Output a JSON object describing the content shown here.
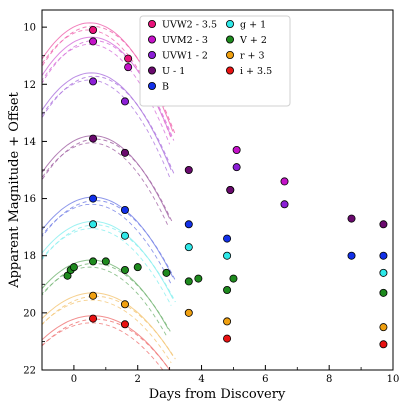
{
  "chart_data": {
    "type": "scatter",
    "title": "",
    "xlabel": "Days from Discovery",
    "ylabel": "Apparent Magnitude + Offset",
    "xlim": [
      -1,
      10
    ],
    "ylim": [
      22,
      9.4
    ],
    "y_inverted": true,
    "grid": false,
    "legend_position": "top-center",
    "xticks": [
      0,
      2,
      4,
      6,
      8,
      10
    ],
    "yticks": [
      10,
      12,
      14,
      16,
      18,
      20,
      22
    ],
    "series": [
      {
        "name": "UVW2 - 3.5",
        "color": "#e8127a",
        "curve_color": "#f06ab0",
        "points": [
          [
            0.6,
            10.1
          ],
          [
            1.7,
            11.1
          ]
        ],
        "curve": {
          "peak_x": 0.5,
          "peak_y": 9.85,
          "half_width": 2.6,
          "depth": 3.8
        }
      },
      {
        "name": "UVM2 - 3",
        "color": "#c412c8",
        "curve_color": "#d875dc",
        "points": [
          [
            0.6,
            10.5
          ],
          [
            1.7,
            11.4
          ],
          [
            5.1,
            14.3
          ],
          [
            6.6,
            15.4
          ]
        ],
        "curve": {
          "peak_x": 0.55,
          "peak_y": 10.35,
          "half_width": 2.5,
          "depth": 3.5
        }
      },
      {
        "name": "UVW1 - 2",
        "color": "#8c1fd6",
        "curve_color": "#b07ae0",
        "points": [
          [
            0.6,
            11.9
          ],
          [
            1.6,
            12.6
          ],
          [
            4.9,
            15.7
          ],
          [
            5.1,
            14.9
          ],
          [
            6.6,
            16.2
          ]
        ],
        "curve": {
          "peak_x": 0.55,
          "peak_y": 11.6,
          "half_width": 2.5,
          "depth": 3.4
        }
      },
      {
        "name": "U - 1",
        "color": "#6a0a6e",
        "curve_color": "#a66aa8",
        "points": [
          [
            0.6,
            13.9
          ],
          [
            1.6,
            14.4
          ],
          [
            3.6,
            15.0
          ],
          [
            4.9,
            15.7
          ],
          [
            8.7,
            16.7
          ],
          [
            9.7,
            16.9
          ]
        ],
        "curve": {
          "peak_x": 0.6,
          "peak_y": 13.8,
          "half_width": 2.4,
          "depth": 2.9
        }
      },
      {
        "name": "B",
        "color": "#1230e8",
        "curve_color": "#7a86e8",
        "points": [
          [
            0.6,
            16.0
          ],
          [
            1.6,
            16.4
          ],
          [
            3.6,
            16.9
          ],
          [
            4.8,
            17.4
          ],
          [
            8.7,
            18.0
          ],
          [
            9.7,
            18.0
          ]
        ],
        "curve": {
          "peak_x": 0.6,
          "peak_y": 15.95,
          "half_width": 2.5,
          "depth": 2.8
        }
      },
      {
        "name": "g + 1",
        "color": "#2ee8e8",
        "curve_color": "#8cf0f0",
        "points": [
          [
            0.6,
            16.9
          ],
          [
            1.6,
            17.3
          ],
          [
            3.6,
            17.7
          ],
          [
            4.8,
            18.0
          ],
          [
            9.7,
            18.6
          ]
        ],
        "curve": {
          "peak_x": 0.6,
          "peak_y": 16.8,
          "half_width": 2.5,
          "depth": 2.7
        }
      },
      {
        "name": "V + 2",
        "color": "#1e8a1e",
        "curve_color": "#7ab87a",
        "points": [
          [
            -0.2,
            18.7
          ],
          [
            -0.1,
            18.5
          ],
          [
            0.0,
            18.4
          ],
          [
            0.6,
            18.2
          ],
          [
            1.0,
            18.2
          ],
          [
            1.6,
            18.5
          ],
          [
            2.0,
            18.4
          ],
          [
            2.9,
            18.6
          ],
          [
            3.6,
            18.9
          ],
          [
            3.9,
            18.8
          ],
          [
            4.8,
            19.2
          ],
          [
            5.0,
            18.8
          ],
          [
            9.7,
            19.3
          ]
        ],
        "curve": {
          "peak_x": 0.55,
          "peak_y": 18.15,
          "half_width": 2.4,
          "depth": 2.4
        }
      },
      {
        "name": "r + 3",
        "color": "#f0a010",
        "curve_color": "#f5c87a",
        "points": [
          [
            0.6,
            19.4
          ],
          [
            1.6,
            19.7
          ],
          [
            3.6,
            20.0
          ],
          [
            4.8,
            20.3
          ],
          [
            9.7,
            20.5
          ]
        ],
        "curve": {
          "peak_x": 0.6,
          "peak_y": 19.3,
          "half_width": 2.5,
          "depth": 2.2
        }
      },
      {
        "name": "i + 3.5",
        "color": "#e81212",
        "curve_color": "#f07a7a",
        "points": [
          [
            0.6,
            20.2
          ],
          [
            1.6,
            20.4
          ],
          [
            4.8,
            20.9
          ],
          [
            9.7,
            21.1
          ]
        ],
        "curve": {
          "peak_x": 0.6,
          "peak_y": 20.1,
          "half_width": 2.4,
          "depth": 1.9
        }
      }
    ]
  }
}
